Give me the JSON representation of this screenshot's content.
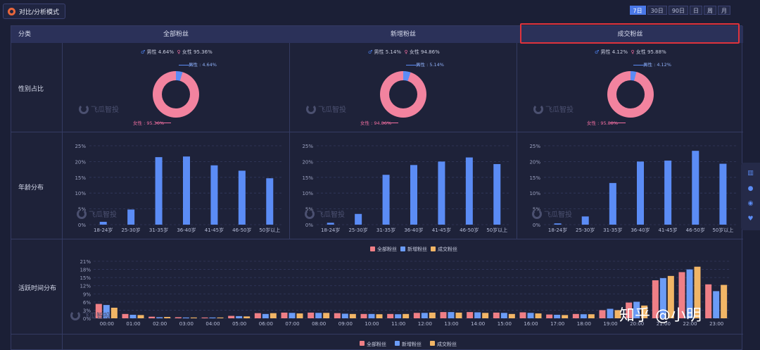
{
  "toolbar": {
    "mode_label": "对比/分析模式",
    "ranges": [
      "7日",
      "30日",
      "90日",
      "日",
      "周",
      "月"
    ],
    "active_range": "7日"
  },
  "header": {
    "category_label": "分类",
    "columns": [
      "全部粉丝",
      "新增粉丝",
      "成交粉丝"
    ]
  },
  "rows": {
    "gender": "性别占比",
    "age": "年龄分布",
    "activity": "活跃时间分布"
  },
  "watermark": "飞瓜智投",
  "gender": [
    {
      "legend_m": "男性 4.64%",
      "legend_f": "女性 95.36%",
      "label_m": "男性 : 4.64%",
      "label_f": "女性 : 95.36%",
      "male_pct": 4.64
    },
    {
      "legend_m": "男性 5.14%",
      "legend_f": "女性 94.86%",
      "label_m": "男性 : 5.14%",
      "label_f": "女性 : 94.86%",
      "male_pct": 5.14
    },
    {
      "legend_m": "男性 4.12%",
      "legend_f": "女性 95.88%",
      "label_m": "男性 : 4.12%",
      "label_f": "女性 : 95.88%",
      "male_pct": 4.12
    }
  ],
  "colors": {
    "male": "#5b8cf5",
    "female": "#f2839f",
    "all": "#ef7f86",
    "new": "#6b9cf7",
    "deal": "#f1b566"
  },
  "chart_data": [
    {
      "type": "bar",
      "title": "全部粉丝 年龄分布",
      "categories": [
        "18-24岁",
        "25-30岁",
        "31-35岁",
        "36-40岁",
        "41-45岁",
        "46-50岁",
        "50岁以上"
      ],
      "yticks": [
        "25%",
        "20%",
        "15%",
        "10%",
        "5%",
        "0%"
      ],
      "ylim": [
        0,
        25
      ],
      "values": [
        0.9,
        4.8,
        21.4,
        21.6,
        18.8,
        17.1,
        14.7
      ]
    },
    {
      "type": "bar",
      "title": "新增粉丝 年龄分布",
      "categories": [
        "18-24岁",
        "25-30岁",
        "31-35岁",
        "36-40岁",
        "41-45岁",
        "46-50岁",
        "50岁以上"
      ],
      "yticks": [
        "25%",
        "20%",
        "15%",
        "10%",
        "5%",
        "0%"
      ],
      "ylim": [
        0,
        25
      ],
      "values": [
        0.6,
        3.4,
        15.8,
        18.9,
        20.0,
        21.3,
        19.2
      ]
    },
    {
      "type": "bar",
      "title": "成交粉丝 年龄分布",
      "categories": [
        "18-24岁",
        "25-30岁",
        "31-35岁",
        "36-40岁",
        "41-45岁",
        "46-50岁",
        "50岁以上"
      ],
      "yticks": [
        "25%",
        "20%",
        "15%",
        "10%",
        "5%",
        "0%"
      ],
      "ylim": [
        0,
        25
      ],
      "values": [
        0.4,
        2.6,
        13.2,
        20.0,
        20.3,
        23.4,
        19.3
      ]
    },
    {
      "type": "bar",
      "title": "活跃时间分布",
      "categories": [
        "00:00",
        "01:00",
        "02:00",
        "03:00",
        "04:00",
        "05:00",
        "06:00",
        "07:00",
        "08:00",
        "09:00",
        "10:00",
        "11:00",
        "12:00",
        "13:00",
        "14:00",
        "15:00",
        "16:00",
        "17:00",
        "18:00",
        "19:00",
        "20:00",
        "21:00",
        "22:00",
        "23:00"
      ],
      "yticks": [
        "21%",
        "18%",
        "15%",
        "12%",
        "9%",
        "6%",
        "3%",
        "0%"
      ],
      "ylim": [
        0,
        21
      ],
      "legend": [
        "全部粉丝",
        "新增粉丝",
        "成交粉丝"
      ],
      "series": [
        {
          "name": "全部粉丝",
          "values": [
            5.3,
            1.6,
            0.6,
            0.4,
            0.3,
            0.9,
            1.9,
            2.1,
            2.1,
            1.9,
            1.6,
            1.6,
            2.0,
            2.3,
            2.3,
            2.1,
            2.2,
            1.4,
            1.6,
            3.0,
            5.8,
            14.0,
            17.0,
            12.5
          ]
        },
        {
          "name": "新增粉丝",
          "values": [
            4.9,
            1.3,
            0.4,
            0.3,
            0.3,
            0.8,
            1.6,
            2.0,
            2.0,
            1.7,
            1.6,
            1.5,
            2.0,
            2.3,
            2.2,
            2.0,
            2.0,
            1.3,
            1.5,
            3.5,
            6.1,
            14.8,
            18.0,
            10.0
          ]
        },
        {
          "name": "成交粉丝",
          "values": [
            3.9,
            1.2,
            0.5,
            0.3,
            0.3,
            0.7,
            1.9,
            1.8,
            2.0,
            1.6,
            1.5,
            1.6,
            2.1,
            2.1,
            2.0,
            1.6,
            1.8,
            1.2,
            1.5,
            3.0,
            4.7,
            15.6,
            19.0,
            12.3
          ]
        }
      ]
    }
  ],
  "bottom_legend": [
    "全部粉丝",
    "新增粉丝",
    "成交粉丝"
  ],
  "overlay_text": "知乎 @小明"
}
